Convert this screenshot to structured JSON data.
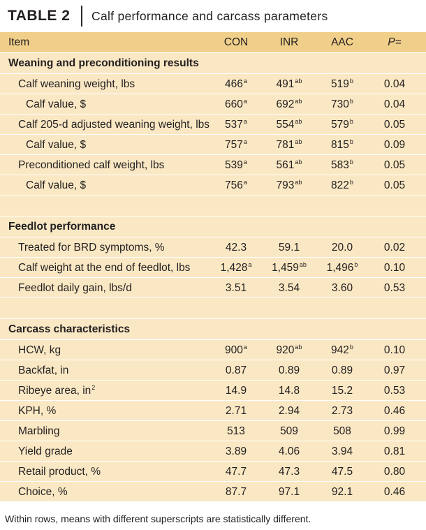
{
  "title": {
    "label": "TABLE 2",
    "text": "Calf performance and carcass parameters"
  },
  "columns": {
    "item": "Item",
    "con": "CON",
    "inr": "INR",
    "aac": "AAC",
    "p": "P="
  },
  "rows": [
    {
      "kind": "section",
      "item": "Weaning and preconditioning results"
    },
    {
      "kind": "data",
      "indent": 1,
      "item": "Calf weaning weight, lbs",
      "con": "466",
      "con_sup": "a",
      "inr": "491",
      "inr_sup": "ab",
      "aac": "519",
      "aac_sup": "b",
      "p": "0.04"
    },
    {
      "kind": "data",
      "indent": 2,
      "item": "Calf value, $",
      "con": "660",
      "con_sup": "a",
      "inr": "692",
      "inr_sup": "ab",
      "aac": "730",
      "aac_sup": "b",
      "p": "0.04"
    },
    {
      "kind": "data",
      "indent": 1,
      "item": "Calf 205-d adjusted weaning weight, lbs",
      "con": "537",
      "con_sup": "a",
      "inr": "554",
      "inr_sup": "ab",
      "aac": "579",
      "aac_sup": "b",
      "p": "0.05"
    },
    {
      "kind": "data",
      "indent": 2,
      "item": "Calf value, $",
      "con": "757",
      "con_sup": "a",
      "inr": "781",
      "inr_sup": "ab",
      "aac": "815",
      "aac_sup": "b",
      "p": "0.09"
    },
    {
      "kind": "data",
      "indent": 1,
      "item": "Preconditioned calf weight, lbs",
      "con": "539",
      "con_sup": "a",
      "inr": "561",
      "inr_sup": "ab",
      "aac": "583",
      "aac_sup": "b",
      "p": "0.05"
    },
    {
      "kind": "data",
      "indent": 2,
      "item": "Calf value, $",
      "con": "756",
      "con_sup": "a",
      "inr": "793",
      "inr_sup": "ab",
      "aac": "822",
      "aac_sup": "b",
      "p": "0.05"
    },
    {
      "kind": "spacer"
    },
    {
      "kind": "section",
      "item": "Feedlot performance"
    },
    {
      "kind": "data",
      "indent": 1,
      "item": "Treated for BRD symptoms, %",
      "con": "42.3",
      "inr": "59.1",
      "aac": "20.0",
      "p": "0.02"
    },
    {
      "kind": "data",
      "indent": 1,
      "item": "Calf weight at the end of feedlot, lbs",
      "con": "1,428",
      "con_sup": "a",
      "inr": "1,459",
      "inr_sup": "ab",
      "aac": "1,496",
      "aac_sup": "b",
      "p": "0.10"
    },
    {
      "kind": "data",
      "indent": 1,
      "item": "Feedlot daily gain, lbs/d",
      "con": "3.51",
      "inr": "3.54",
      "aac": "3.60",
      "p": "0.53"
    },
    {
      "kind": "spacer"
    },
    {
      "kind": "section",
      "item": "Carcass characteristics"
    },
    {
      "kind": "data",
      "indent": 1,
      "item": "HCW, kg",
      "con": "900",
      "con_sup": "a",
      "inr": "920",
      "inr_sup": "ab",
      "aac": "942",
      "aac_sup": "b",
      "p": "0.10"
    },
    {
      "kind": "data",
      "indent": 1,
      "item": "Backfat, in",
      "con": "0.87",
      "inr": "0.89",
      "aac": "0.89",
      "p": "0.97"
    },
    {
      "kind": "data",
      "indent": 1,
      "item": "Ribeye area, in",
      "item_sup": "2",
      "con": "14.9",
      "inr": "14.8",
      "aac": "15.2",
      "p": "0.53"
    },
    {
      "kind": "data",
      "indent": 1,
      "item": "KPH, %",
      "con": "2.71",
      "inr": "2.94",
      "aac": "2.73",
      "p": "0.46"
    },
    {
      "kind": "data",
      "indent": 1,
      "item": "Marbling",
      "con": "513",
      "inr": "509",
      "aac": "508",
      "p": "0.99"
    },
    {
      "kind": "data",
      "indent": 1,
      "item": "Yield grade",
      "con": "3.89",
      "inr": "4.06",
      "aac": "3.94",
      "p": "0.81"
    },
    {
      "kind": "data",
      "indent": 1,
      "item": "Retail product, %",
      "con": "47.7",
      "inr": "47.3",
      "aac": "47.5",
      "p": "0.80"
    },
    {
      "kind": "data",
      "indent": 1,
      "item": "Choice, %",
      "con": "87.7",
      "inr": "97.1",
      "aac": "92.1",
      "p": "0.46"
    }
  ],
  "footnote": "Within rows, means with different superscripts are statistically different.",
  "colors": {
    "header_bg": "#f0cf8a",
    "body_bg": "#fae8c4",
    "divider": "#ffffff"
  }
}
